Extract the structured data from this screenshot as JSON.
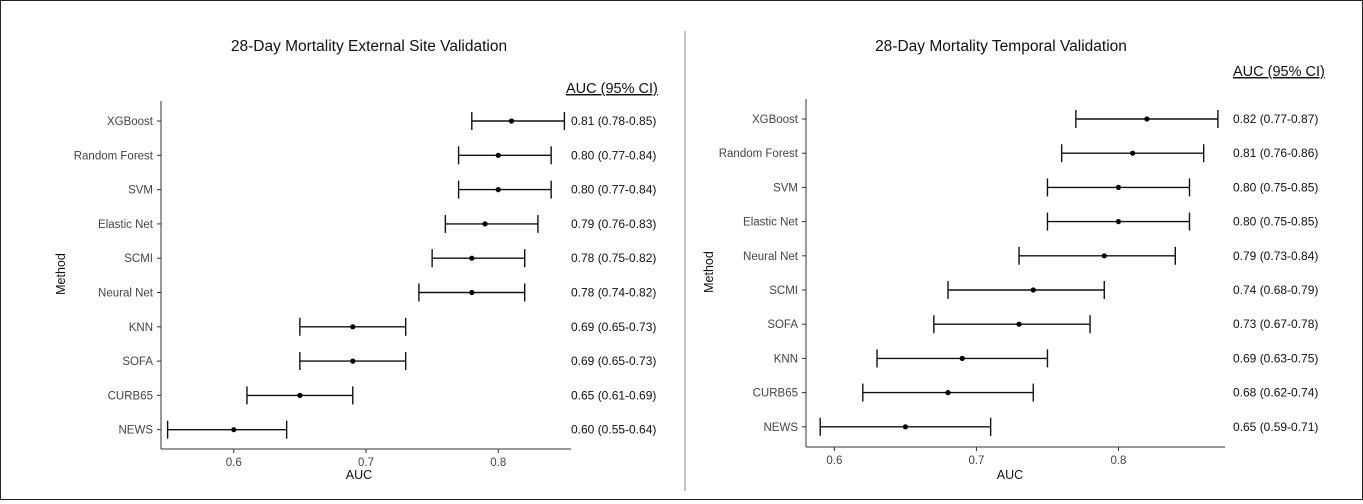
{
  "chart_data": [
    {
      "type": "scatter",
      "subtype": "forest-plot",
      "title": "28-Day Mortality External Site Validation",
      "xlabel": "AUC",
      "ylabel": "Method",
      "xlim": [
        0.545,
        0.855
      ],
      "xticks": [
        {
          "value": 0.6,
          "label": "0.6"
        },
        {
          "value": 0.7,
          "label": "0.7"
        },
        {
          "value": 0.8,
          "label": "0.8"
        }
      ],
      "grid": false,
      "ci_header": "AUC (95% CI)",
      "rows": [
        {
          "method": "XGBoost",
          "auc": 0.81,
          "lo": 0.78,
          "hi": 0.85,
          "label": "0.81 (0.78-0.85)"
        },
        {
          "method": "Random Forest",
          "auc": 0.8,
          "lo": 0.77,
          "hi": 0.84,
          "label": "0.80 (0.77-0.84)"
        },
        {
          "method": "SVM",
          "auc": 0.8,
          "lo": 0.77,
          "hi": 0.84,
          "label": "0.80 (0.77-0.84)"
        },
        {
          "method": "Elastic Net",
          "auc": 0.79,
          "lo": 0.76,
          "hi": 0.83,
          "label": "0.79 (0.76-0.83)"
        },
        {
          "method": "SCMI",
          "auc": 0.78,
          "lo": 0.75,
          "hi": 0.82,
          "label": "0.78 (0.75-0.82)"
        },
        {
          "method": "Neural Net",
          "auc": 0.78,
          "lo": 0.74,
          "hi": 0.82,
          "label": "0.78 (0.74-0.82)"
        },
        {
          "method": "KNN",
          "auc": 0.69,
          "lo": 0.65,
          "hi": 0.73,
          "label": "0.69 (0.65-0.73)"
        },
        {
          "method": "SOFA",
          "auc": 0.69,
          "lo": 0.65,
          "hi": 0.73,
          "label": "0.69 (0.65-0.73)"
        },
        {
          "method": "CURB65",
          "auc": 0.65,
          "lo": 0.61,
          "hi": 0.69,
          "label": "0.65 (0.61-0.69)"
        },
        {
          "method": "NEWS",
          "auc": 0.6,
          "lo": 0.55,
          "hi": 0.64,
          "label": "0.60 (0.55-0.64)"
        }
      ]
    },
    {
      "type": "scatter",
      "subtype": "forest-plot",
      "title": "28-Day Mortality Temporal Validation",
      "xlabel": "AUC",
      "ylabel": "Method",
      "xlim": [
        0.58,
        0.875
      ],
      "xticks": [
        {
          "value": 0.6,
          "label": "0.6"
        },
        {
          "value": 0.7,
          "label": "0.7"
        },
        {
          "value": 0.8,
          "label": "0.8"
        }
      ],
      "grid": false,
      "ci_header": "AUC (95% CI)",
      "rows": [
        {
          "method": "XGBoost",
          "auc": 0.82,
          "lo": 0.77,
          "hi": 0.87,
          "label": "0.82 (0.77-0.87)"
        },
        {
          "method": "Random Forest",
          "auc": 0.81,
          "lo": 0.76,
          "hi": 0.86,
          "label": "0.81 (0.76-0.86)"
        },
        {
          "method": "SVM",
          "auc": 0.8,
          "lo": 0.75,
          "hi": 0.85,
          "label": "0.80 (0.75-0.85)"
        },
        {
          "method": "Elastic Net",
          "auc": 0.8,
          "lo": 0.75,
          "hi": 0.85,
          "label": "0.80 (0.75-0.85)"
        },
        {
          "method": "Neural Net",
          "auc": 0.79,
          "lo": 0.73,
          "hi": 0.84,
          "label": "0.79 (0.73-0.84)"
        },
        {
          "method": "SCMI",
          "auc": 0.74,
          "lo": 0.68,
          "hi": 0.79,
          "label": "0.74 (0.68-0.79)"
        },
        {
          "method": "SOFA",
          "auc": 0.73,
          "lo": 0.67,
          "hi": 0.78,
          "label": "0.73 (0.67-0.78)"
        },
        {
          "method": "KNN",
          "auc": 0.69,
          "lo": 0.63,
          "hi": 0.75,
          "label": "0.69 (0.63-0.75)"
        },
        {
          "method": "CURB65",
          "auc": 0.68,
          "lo": 0.62,
          "hi": 0.74,
          "label": "0.68 (0.62-0.74)"
        },
        {
          "method": "NEWS",
          "auc": 0.65,
          "lo": 0.59,
          "hi": 0.71,
          "label": "0.65 (0.59-0.71)"
        }
      ]
    }
  ]
}
